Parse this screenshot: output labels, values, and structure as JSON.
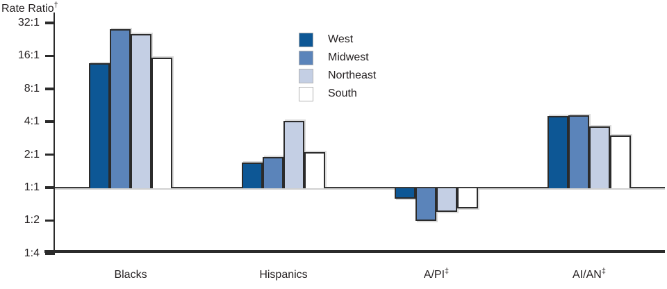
{
  "title": "Rate Ratio†",
  "colors": {
    "axis": "#2b2b2b",
    "bar_border": "#2b2b2b",
    "text": "#231f20",
    "west": "#0d5795",
    "midwest": "#5b84ba",
    "northeast": "#c4cfe4",
    "south": "#ffffff"
  },
  "chart_data": {
    "type": "bar",
    "scale": "log2",
    "title": "",
    "ylabel": "Rate Ratio†",
    "xlabel": "",
    "baseline": "1:1",
    "ylim_labels": [
      "1:4",
      "32:1"
    ],
    "grid": false,
    "legend_position": "top-center",
    "yticks": [
      "32:1",
      "16:1",
      "8:1",
      "4:1",
      "2:1",
      "1:1",
      "1:2",
      "1:4"
    ],
    "categories": [
      "Blacks",
      "Hispanics",
      "A/PI‡",
      "AI/AN‡"
    ],
    "series": [
      {
        "name": "West",
        "color": "#0d5795",
        "values": [
          13.7,
          1.7,
          0.8,
          4.5
        ]
      },
      {
        "name": "Midwest",
        "color": "#5b84ba",
        "values": [
          28.0,
          1.9,
          0.5,
          4.6
        ]
      },
      {
        "name": "Northeast",
        "color": "#c4cfe4",
        "values": [
          25.5,
          4.1,
          0.6,
          3.6
        ]
      },
      {
        "name": "South",
        "color": "#ffffff",
        "values": [
          15.4,
          2.1,
          0.65,
          3.0
        ]
      }
    ]
  }
}
